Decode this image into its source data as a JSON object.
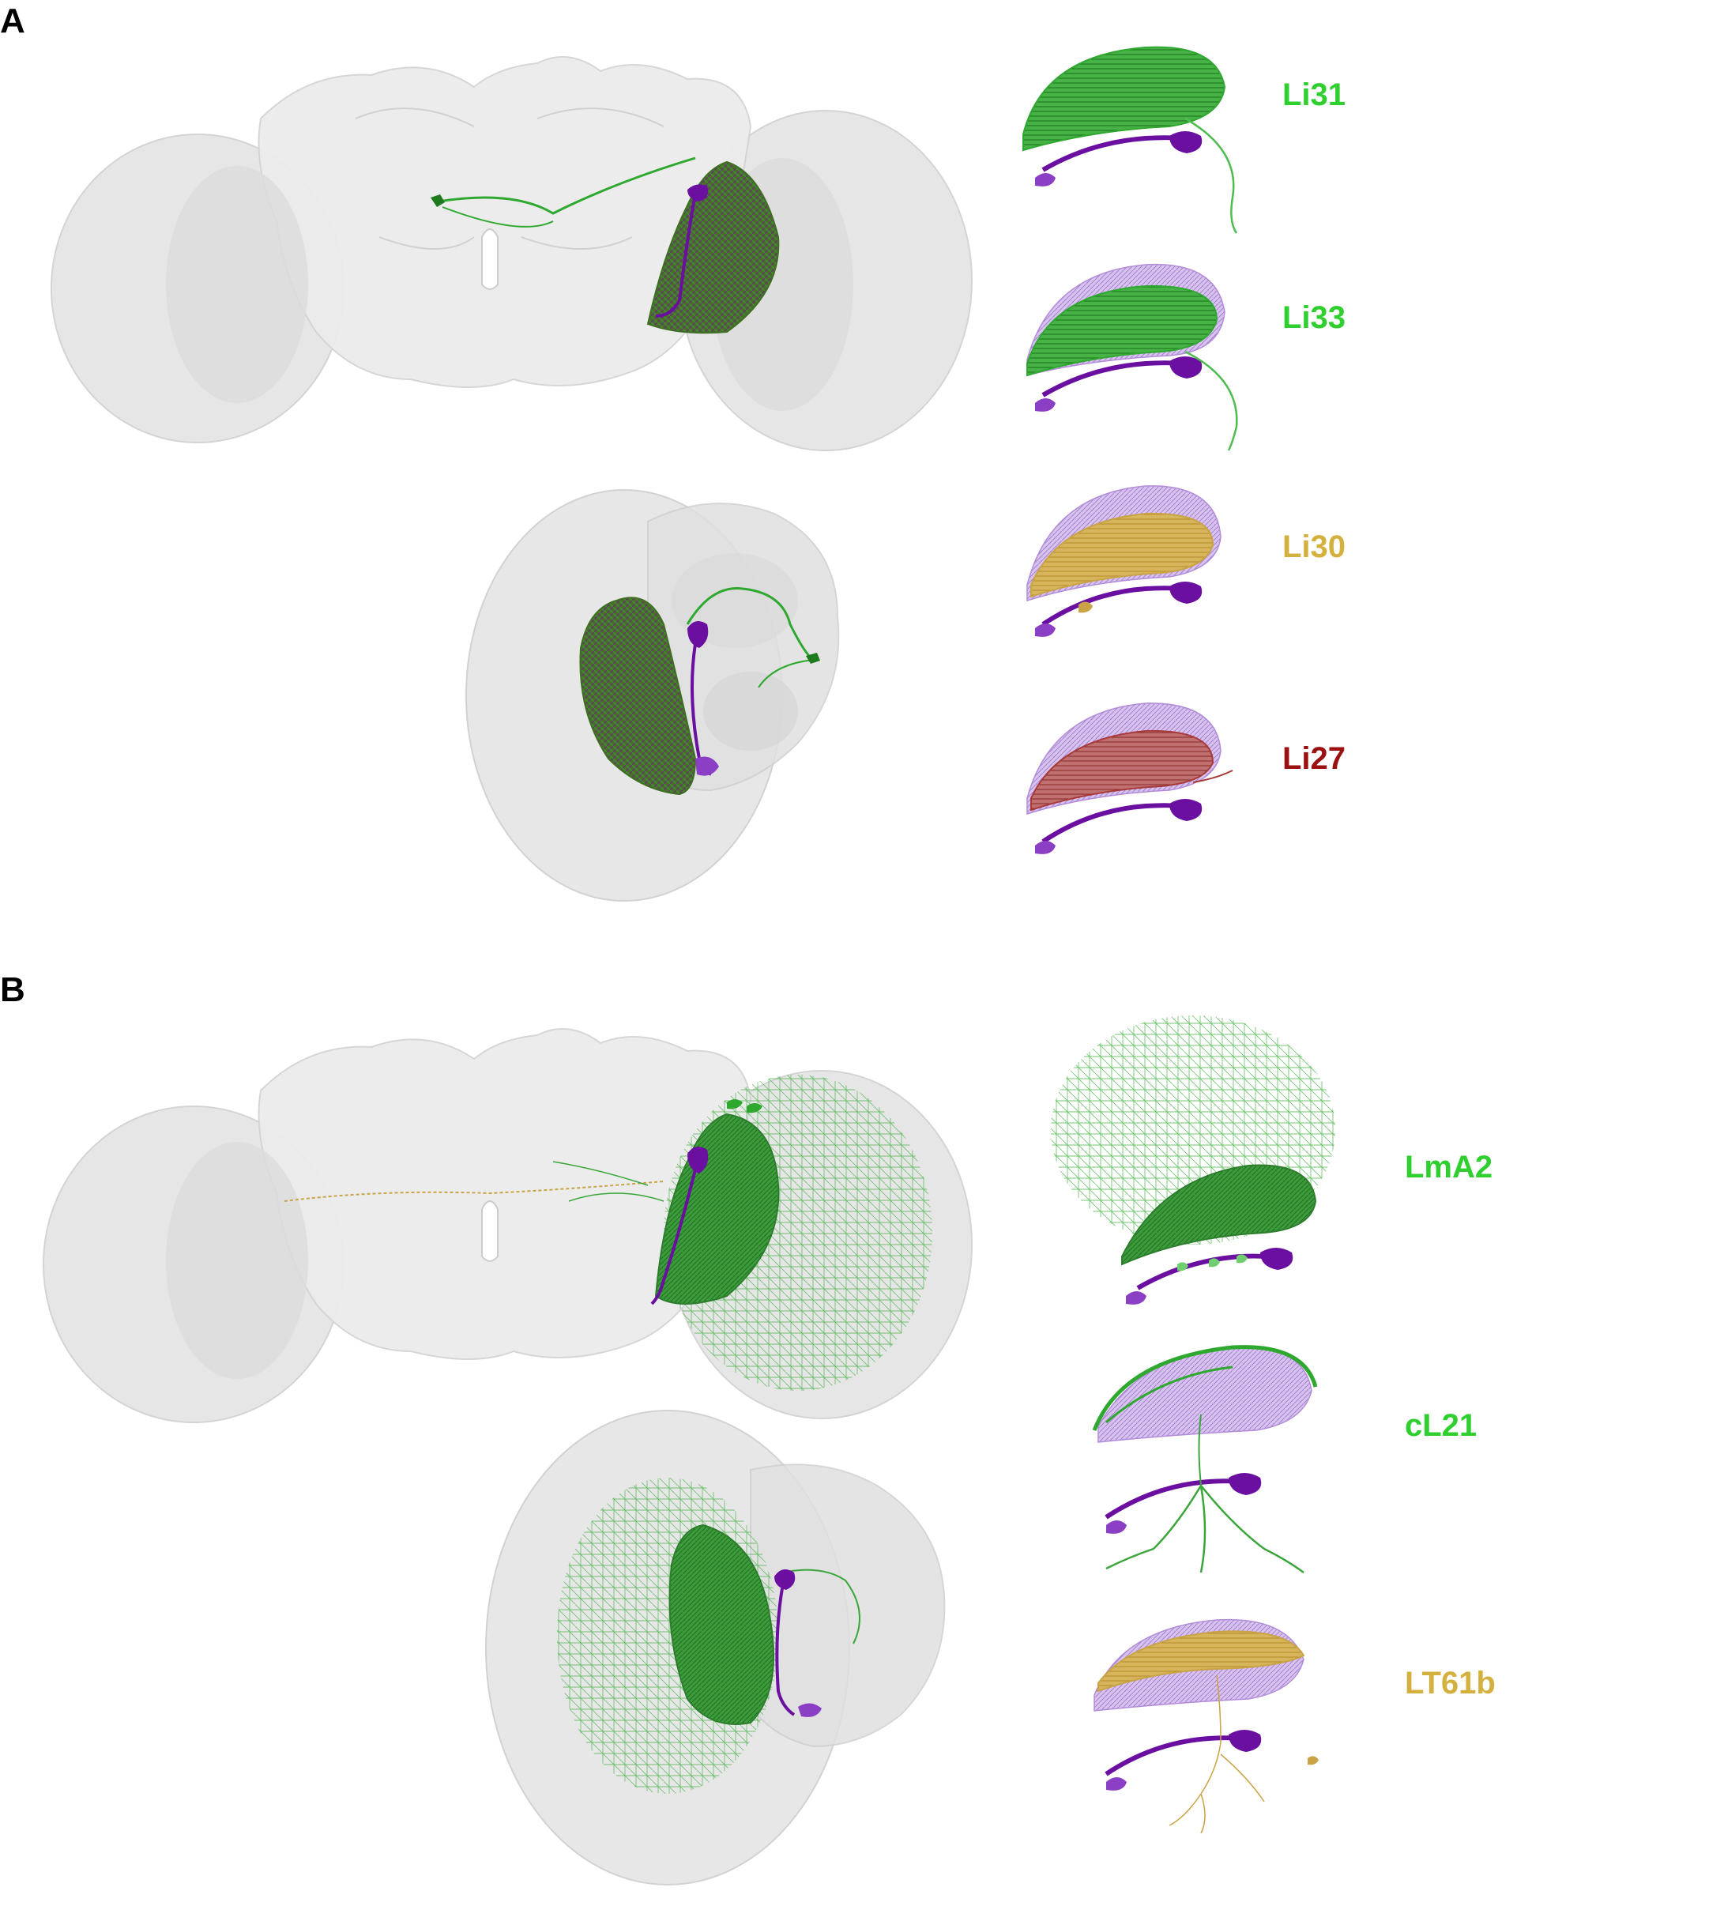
{
  "panels": [
    {
      "letter": "A",
      "labels": [
        {
          "text": "Li31",
          "color": "#2fcf2f"
        },
        {
          "text": "Li33",
          "color": "#2fcf2f"
        },
        {
          "text": "Li30",
          "color": "#d4b13e"
        },
        {
          "text": "Li27",
          "color": "#9b1010"
        }
      ]
    },
    {
      "letter": "B",
      "labels": [
        {
          "text": "LmA2",
          "color": "#2fcf2f"
        },
        {
          "text": "cL21",
          "color": "#2fcf2f"
        },
        {
          "text": "LT61b",
          "color": "#d4b13e"
        }
      ]
    }
  ],
  "colors": {
    "brain_fill": "#d9d9d9",
    "purple": "#6a0fa0",
    "purple_light": "#b28cd9",
    "green": "#2e9e2e",
    "green_bright": "#39c539",
    "tan": "#c9a346",
    "dark_red": "#a83a3a"
  }
}
